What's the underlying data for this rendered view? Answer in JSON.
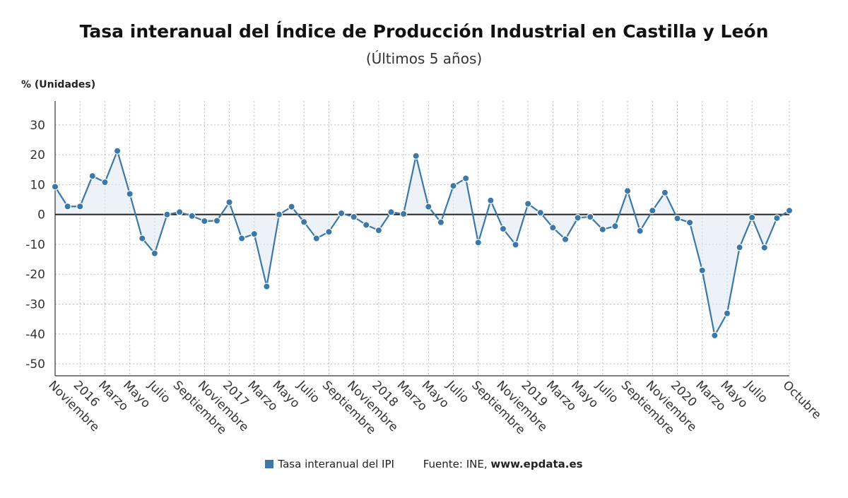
{
  "chart_data": {
    "type": "line",
    "title": "Tasa interanual del Índice de Producción Industrial en Castilla y León",
    "subtitle": "(Últimos 5 años)",
    "ylabel": "% (Unidades)",
    "xlabel": "",
    "ylim": [
      -54,
      38
    ],
    "yticks": [
      30,
      20,
      10,
      0,
      -10,
      -20,
      -30,
      -40,
      -50
    ],
    "grid": true,
    "color": "#3b78a8",
    "fill_color": "#dce8f3",
    "x_tick_labels": [
      {
        "index": 0,
        "label": "Noviembre"
      },
      {
        "index": 2,
        "label": "2016"
      },
      {
        "index": 4,
        "label": "Marzo"
      },
      {
        "index": 6,
        "label": "Mayo"
      },
      {
        "index": 8,
        "label": "Julio"
      },
      {
        "index": 10,
        "label": "Septiembre"
      },
      {
        "index": 12,
        "label": "Noviembre"
      },
      {
        "index": 14,
        "label": "2017"
      },
      {
        "index": 16,
        "label": "Marzo"
      },
      {
        "index": 18,
        "label": "Mayo"
      },
      {
        "index": 20,
        "label": "Julio"
      },
      {
        "index": 22,
        "label": "Septiembre"
      },
      {
        "index": 24,
        "label": "Noviembre"
      },
      {
        "index": 26,
        "label": "2018"
      },
      {
        "index": 28,
        "label": "Marzo"
      },
      {
        "index": 30,
        "label": "Mayo"
      },
      {
        "index": 32,
        "label": "Julio"
      },
      {
        "index": 34,
        "label": "Septiembre"
      },
      {
        "index": 36,
        "label": "Noviembre"
      },
      {
        "index": 38,
        "label": "2019"
      },
      {
        "index": 40,
        "label": "Marzo"
      },
      {
        "index": 42,
        "label": "Mayo"
      },
      {
        "index": 44,
        "label": "Julio"
      },
      {
        "index": 46,
        "label": "Septiembre"
      },
      {
        "index": 48,
        "label": "Noviembre"
      },
      {
        "index": 50,
        "label": "2020"
      },
      {
        "index": 52,
        "label": "Marzo"
      },
      {
        "index": 54,
        "label": "Mayo"
      },
      {
        "index": 56,
        "label": "Julio"
      },
      {
        "index": 59,
        "label": "Octubre"
      }
    ],
    "series": [
      {
        "name": "Tasa interanual del IPI",
        "values": [
          9.3,
          2.7,
          2.7,
          12.9,
          10.8,
          21.3,
          6.9,
          -8.0,
          -13.0,
          0.0,
          0.8,
          -0.5,
          -2.2,
          -2.1,
          4.1,
          -8.0,
          -6.5,
          -24.1,
          0.0,
          2.6,
          -2.5,
          -8.0,
          -5.8,
          0.4,
          -0.8,
          -3.5,
          -5.3,
          0.8,
          0.2,
          19.6,
          2.6,
          -2.6,
          9.6,
          12.1,
          -9.4,
          4.7,
          -4.8,
          -10.1,
          3.6,
          0.6,
          -4.4,
          -8.3,
          -1.1,
          -0.8,
          -5.0,
          -3.9,
          7.9,
          -5.5,
          1.3,
          7.3,
          -1.3,
          -2.7,
          -18.7,
          -40.5,
          -33.1,
          -11.0,
          -1.0,
          -11.1,
          -1.2,
          1.3
        ]
      }
    ]
  },
  "legend": {
    "series_label": "Tasa interanual del IPI",
    "source_prefix": "Fuente: INE,",
    "source_site": "www.epdata.es"
  }
}
